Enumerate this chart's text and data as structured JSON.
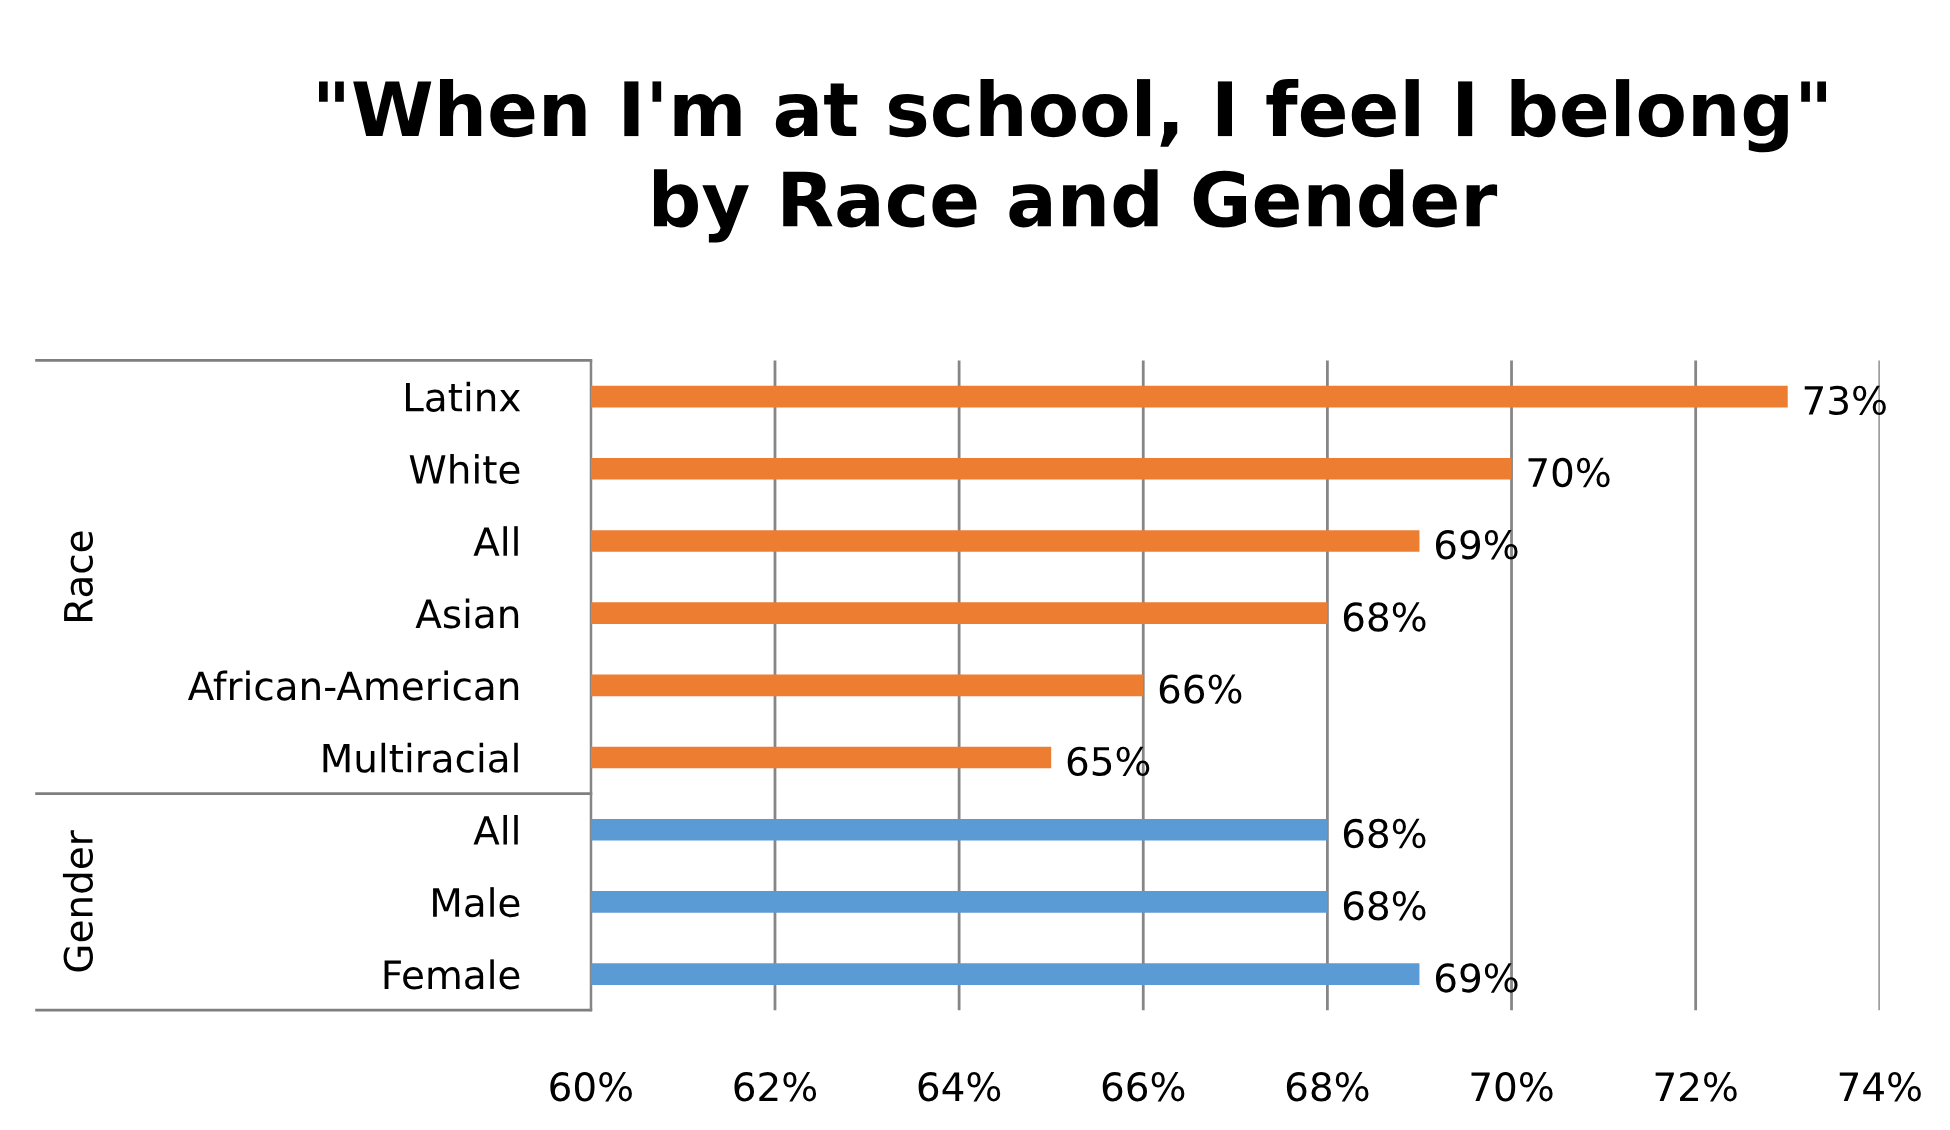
{
  "chart_data": {
    "type": "bar",
    "orientation": "horizontal",
    "title": "\"When I'm at school, I feel I belong\"\nby Race and Gender",
    "categories": [
      "Latinx",
      "White",
      "All",
      "Asian",
      "African-American",
      "Multiracial",
      "All",
      "Male",
      "Female"
    ],
    "values": [
      73,
      70,
      69,
      68,
      66,
      65,
      68,
      68,
      69
    ],
    "value_labels": [
      "73%",
      "70%",
      "69%",
      "68%",
      "66%",
      "65%",
      "68%",
      "68%",
      "69%"
    ],
    "colors": [
      "#ed7d31",
      "#ed7d31",
      "#ed7d31",
      "#ed7d31",
      "#ed7d31",
      "#ed7d31",
      "#5b9bd5",
      "#5b9bd5",
      "#5b9bd5"
    ],
    "annotations": [
      "Race",
      "Gender"
    ],
    "xlim": [
      60,
      74
    ],
    "xticks": [
      {
        "value": 60,
        "label": "60%"
      },
      {
        "value": 62,
        "label": "62%"
      },
      {
        "value": 64,
        "label": "64%"
      },
      {
        "value": 66,
        "label": "66%"
      },
      {
        "value": 68,
        "label": "68%"
      },
      {
        "value": 70,
        "label": "70%"
      },
      {
        "value": 72,
        "label": "72%"
      },
      {
        "value": 74,
        "label": "74%"
      }
    ],
    "grid": "x",
    "legend": false
  }
}
